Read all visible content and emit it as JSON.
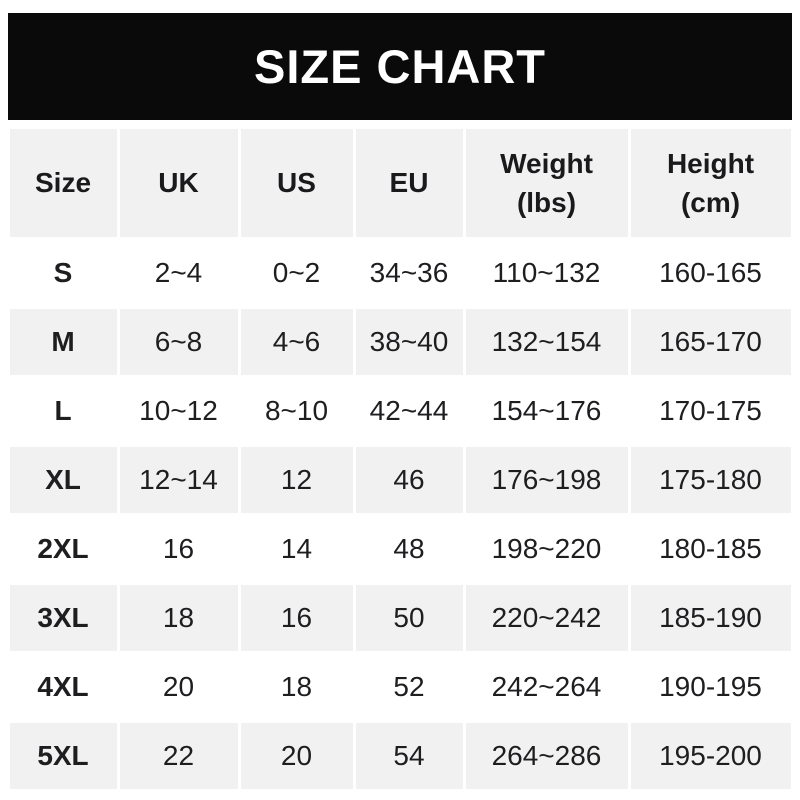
{
  "chart_data": {
    "type": "table",
    "title": "SIZE CHART",
    "columns": [
      "Size",
      "UK",
      "US",
      "EU",
      "Weight (lbs)",
      "Height (cm)"
    ],
    "header_cells": [
      {
        "line1": "Size"
      },
      {
        "line1": "UK"
      },
      {
        "line1": "US"
      },
      {
        "line1": "EU"
      },
      {
        "line1": "Weight",
        "line2": "(lbs)"
      },
      {
        "line1": "Height",
        "line2": "(cm)"
      }
    ],
    "rows": [
      {
        "size": "S",
        "uk": "2~4",
        "us": "0~2",
        "eu": "34~36",
        "weight": "110~132",
        "height": "160-165"
      },
      {
        "size": "M",
        "uk": "6~8",
        "us": "4~6",
        "eu": "38~40",
        "weight": "132~154",
        "height": "165-170"
      },
      {
        "size": "L",
        "uk": "10~12",
        "us": "8~10",
        "eu": "42~44",
        "weight": "154~176",
        "height": "170-175"
      },
      {
        "size": "XL",
        "uk": "12~14",
        "us": "12",
        "eu": "46",
        "weight": "176~198",
        "height": "175-180"
      },
      {
        "size": "2XL",
        "uk": "16",
        "us": "14",
        "eu": "48",
        "weight": "198~220",
        "height": "180-185"
      },
      {
        "size": "3XL",
        "uk": "18",
        "us": "16",
        "eu": "50",
        "weight": "220~242",
        "height": "185-190"
      },
      {
        "size": "4XL",
        "uk": "20",
        "us": "18",
        "eu": "52",
        "weight": "242~264",
        "height": "190-195"
      },
      {
        "size": "5XL",
        "uk": "22",
        "us": "20",
        "eu": "54",
        "weight": "264~286",
        "height": "195-200"
      }
    ],
    "layout": {
      "grid": "off",
      "alternating_row_color": "#f1f1f1",
      "banner_bg": "#0a0a0a",
      "banner_text": "#ffffff"
    }
  }
}
